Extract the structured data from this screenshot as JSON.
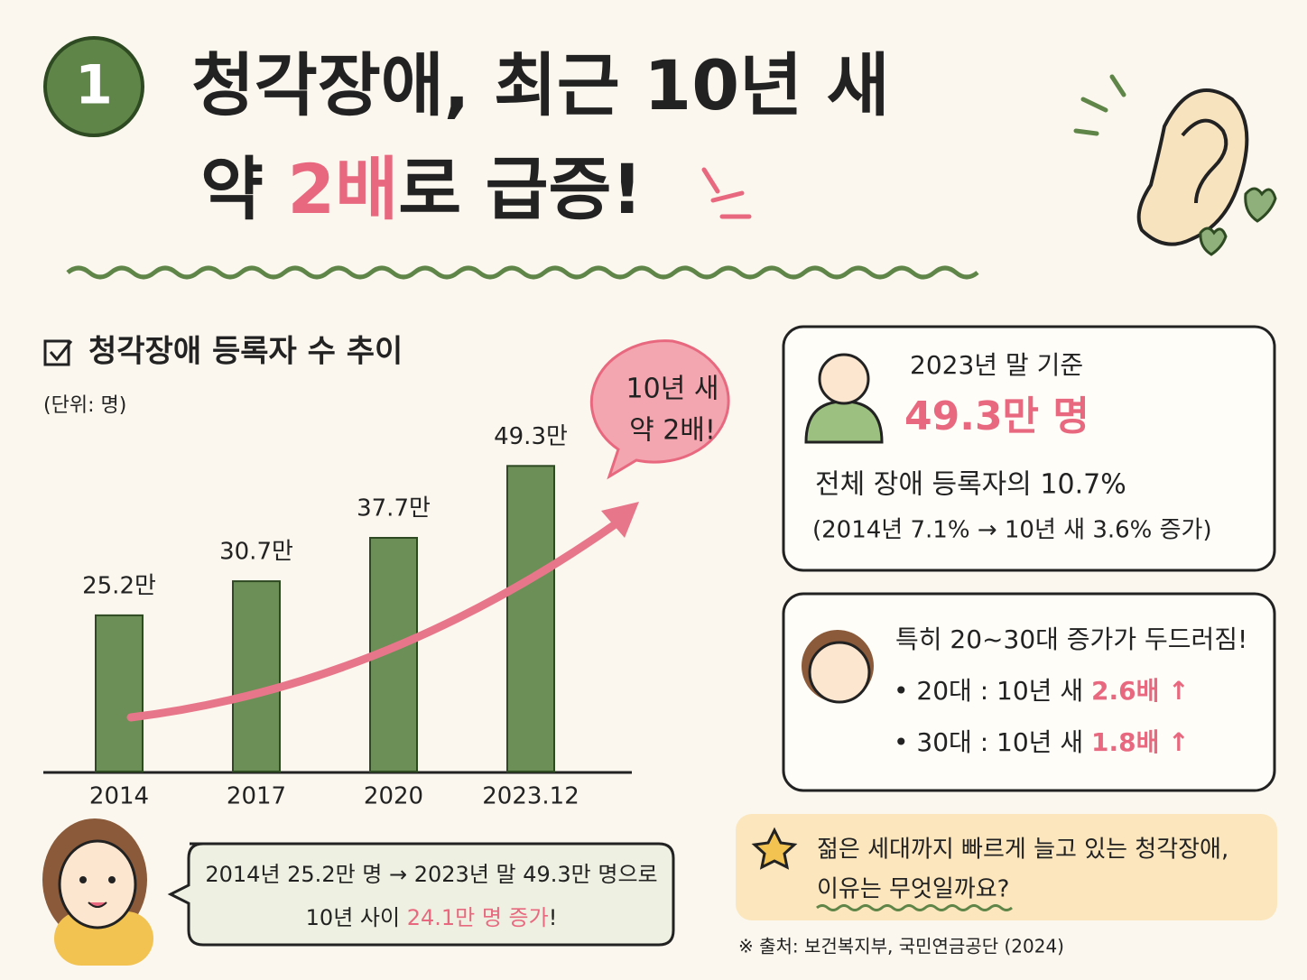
{
  "header": {
    "number": "1",
    "title_line1": "청각장애, 최근 10년 새",
    "title_line2_pre": "약 ",
    "title_line2_highlight": "2배",
    "title_line2_post": "로 급증!"
  },
  "chart_data": {
    "type": "bar",
    "title": "청각장애 등록자 수 추이",
    "subtitle": "(단위: 명)",
    "categories": [
      "2014",
      "2017",
      "2020",
      "2023.12"
    ],
    "values": [
      25.2,
      30.7,
      37.7,
      49.3
    ],
    "value_labels": [
      "25.2만",
      "30.7만",
      "37.7만",
      "49.3만"
    ],
    "color": "#6b8f56",
    "annotation": {
      "line1": "10년 새",
      "line2": "약 2배!"
    }
  },
  "summary": {
    "line1": "2014년 25.2만 명 → 2023년 말 49.3만 명으로",
    "line2_pre": "10년 사이 ",
    "line2_highlight": "24.1만 명 증가",
    "line2_post": "!"
  },
  "box1": {
    "label": "2023년 말 기준",
    "value": "49.3만 명",
    "share": "전체 장애 등록자의 10.7%",
    "note": "(2014년 7.1% → 10년 새 3.6% 증가)"
  },
  "box2": {
    "title": "특히 20~30대 증가가 두드러짐!",
    "items": [
      {
        "text": "• 20대 : 10년 새 ",
        "highlight": "2.6배 ↑"
      },
      {
        "text": "• 30대 : 10년 새 ",
        "highlight": "1.8배 ↑"
      }
    ]
  },
  "question": {
    "line1": "젊은 세대까지 빠르게 늘고 있는 청각장애,",
    "line2": "이유는 무엇일까요?"
  },
  "source": "※ 출처: 보건복지부, 국민연금공단 (2024)"
}
